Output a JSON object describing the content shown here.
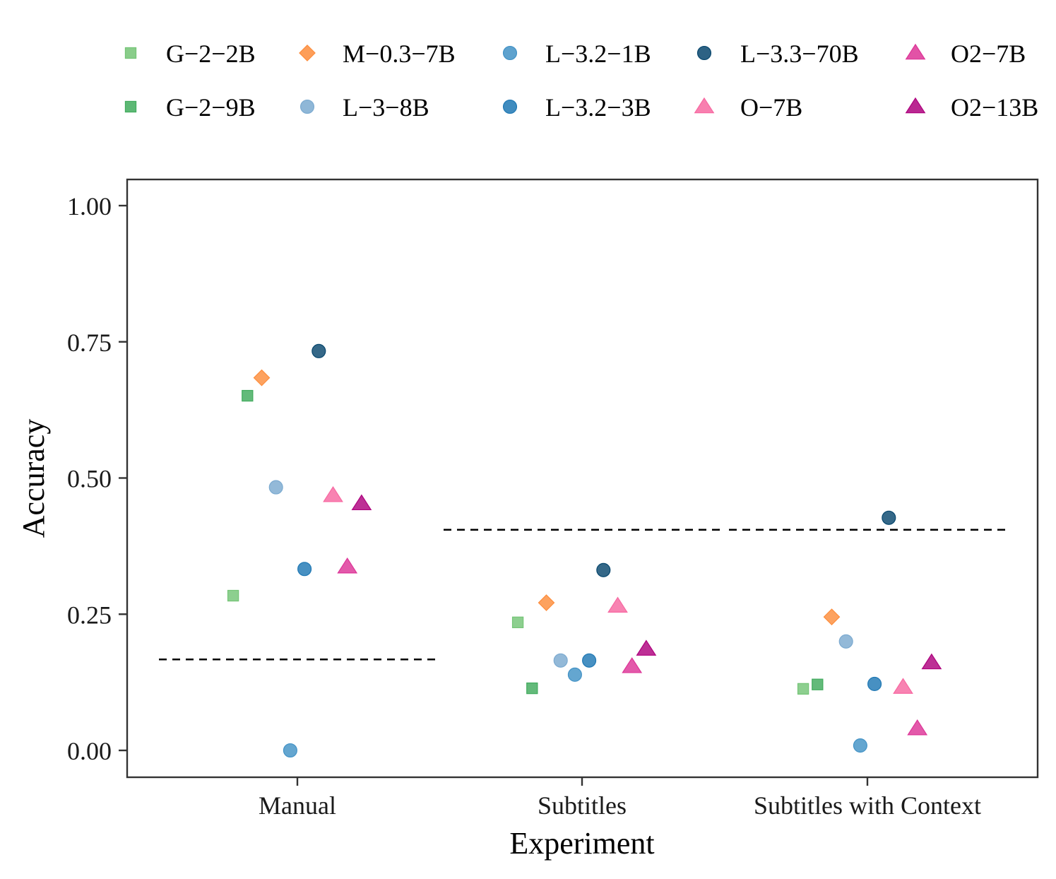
{
  "chart_data": {
    "type": "scatter",
    "xlabel": "Experiment",
    "ylabel": "Accuracy",
    "categories": [
      "Manual",
      "Subtitles",
      "Subtitles with Context"
    ],
    "ylim": [
      -0.05,
      1.05
    ],
    "yticks": [
      0.0,
      0.25,
      0.5,
      0.75,
      1.0
    ],
    "ytick_labels": [
      "0.00",
      "0.25",
      "0.50",
      "0.75",
      "1.00"
    ],
    "grid": false,
    "legend_position": "top",
    "baselines": [
      {
        "category": "Manual",
        "value": 0.167
      },
      {
        "category": "Subtitles",
        "value": 0.405
      },
      {
        "category": "Subtitles with Context",
        "value": 0.405
      }
    ],
    "series": [
      {
        "name": "G−2−2B",
        "shape": "square",
        "color": "#74C476",
        "values": [
          0.284,
          0.235,
          0.113
        ]
      },
      {
        "name": "G−2−9B",
        "shape": "square",
        "color": "#41AB5D",
        "values": [
          0.651,
          0.114,
          0.121
        ]
      },
      {
        "name": "M−0.3−7B",
        "shape": "diamond",
        "color": "#FD8D3C",
        "values": [
          0.684,
          0.271,
          0.245
        ]
      },
      {
        "name": "L−3−8B",
        "shape": "circle",
        "color": "#7BAAD0",
        "values": [
          0.483,
          0.165,
          0.2
        ]
      },
      {
        "name": "L−3.2−1B",
        "shape": "circle",
        "color": "#4292C6",
        "values": [
          0.0,
          0.139,
          0.009
        ]
      },
      {
        "name": "L−3.2−3B",
        "shape": "circle",
        "color": "#1F78B4",
        "values": [
          0.333,
          0.165,
          0.122
        ]
      },
      {
        "name": "L−3.3−70B",
        "shape": "circle",
        "color": "#08476E",
        "values": [
          0.733,
          0.331,
          0.427
        ]
      },
      {
        "name": "O−7B",
        "shape": "triangle",
        "color": "#F768A1",
        "values": [
          0.468,
          0.265,
          0.116
        ]
      },
      {
        "name": "O2−7B",
        "shape": "triangle",
        "color": "#DD3497",
        "values": [
          0.337,
          0.154,
          0.04
        ]
      },
      {
        "name": "O2−13B",
        "shape": "triangle",
        "color": "#AE017E",
        "values": [
          0.453,
          0.186,
          0.161
        ]
      }
    ],
    "legend": [
      {
        "label": "G−2−2B",
        "series": 0
      },
      {
        "label": "G−2−9B",
        "series": 1
      },
      {
        "label": "M−0.3−7B",
        "series": 2
      },
      {
        "label": "L−3−8B",
        "series": 3
      },
      {
        "label": "L−3.2−1B",
        "series": 4
      },
      {
        "label": "L−3.2−3B",
        "series": 5
      },
      {
        "label": "L−3.3−70B",
        "series": 6
      },
      {
        "label": "O−7B",
        "series": 7
      },
      {
        "label": "O2−7B",
        "series": 8
      },
      {
        "label": "O2−13B",
        "series": 9
      }
    ]
  }
}
